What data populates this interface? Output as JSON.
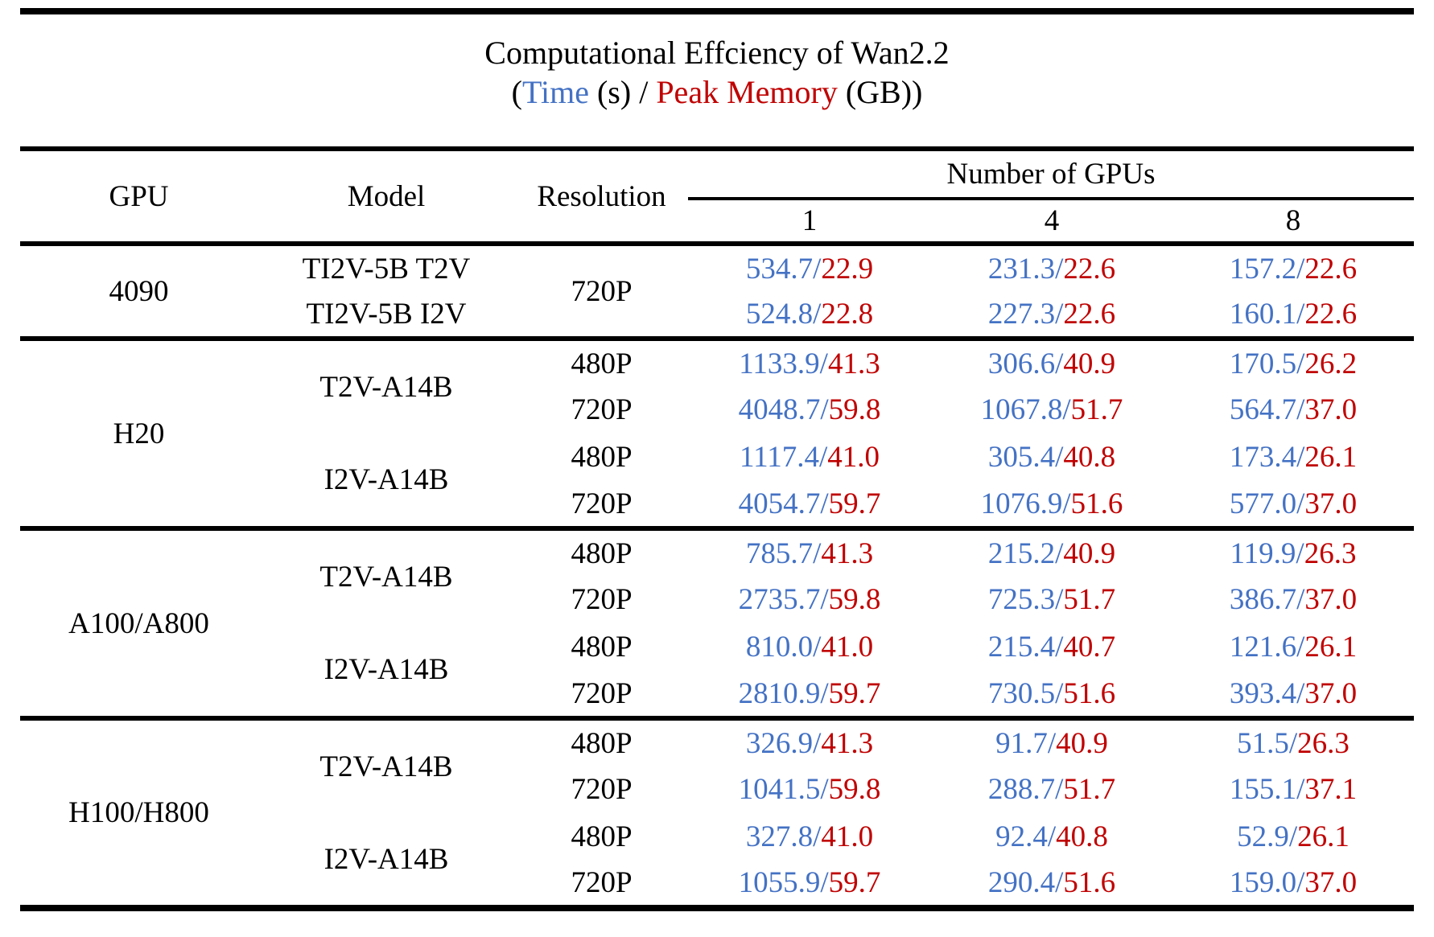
{
  "title": {
    "line1": "Computational Effciency of Wan2.2",
    "sub_prefix": "(",
    "sub_time": "Time",
    "sub_mid": " (s) / ",
    "sub_memory": "Peak Memory",
    "sub_suffix": " (GB))"
  },
  "colors": {
    "time": "#4472C4",
    "memory": "#C00000",
    "rule": "#000000"
  },
  "misc": {
    "slash": "/"
  },
  "header": {
    "gpu": "GPU",
    "model": "Model",
    "resolution": "Resolution",
    "group": "Number of GPUs",
    "counts": [
      "1",
      "4",
      "8"
    ]
  },
  "sections": [
    {
      "gpu": "4090",
      "rows": [
        {
          "model": "TI2V-5B T2V",
          "res": "720P",
          "v": [
            [
              "534.7",
              "22.9"
            ],
            [
              "231.3",
              "22.6"
            ],
            [
              "157.2",
              "22.6"
            ]
          ]
        },
        {
          "model": "TI2V-5B I2V",
          "v": [
            [
              "524.8",
              "22.8"
            ],
            [
              "227.3",
              "22.6"
            ],
            [
              "160.1",
              "22.6"
            ]
          ]
        }
      ]
    },
    {
      "gpu": "H20",
      "rows": [
        {
          "model": "T2V-A14B",
          "res": "480P",
          "v": [
            [
              "1133.9",
              "41.3"
            ],
            [
              "306.6",
              "40.9"
            ],
            [
              "170.5",
              "26.2"
            ]
          ]
        },
        {
          "res": "720P",
          "v": [
            [
              "4048.7",
              "59.8"
            ],
            [
              "1067.8",
              "51.7"
            ],
            [
              "564.7",
              "37.0"
            ]
          ]
        },
        {
          "model": "I2V-A14B",
          "res": "480P",
          "v": [
            [
              "1117.4",
              "41.0"
            ],
            [
              "305.4",
              "40.8"
            ],
            [
              "173.4",
              "26.1"
            ]
          ]
        },
        {
          "res": "720P",
          "v": [
            [
              "4054.7",
              "59.7"
            ],
            [
              "1076.9",
              "51.6"
            ],
            [
              "577.0",
              "37.0"
            ]
          ]
        }
      ]
    },
    {
      "gpu": "A100/A800",
      "rows": [
        {
          "model": "T2V-A14B",
          "res": "480P",
          "v": [
            [
              "785.7",
              "41.3"
            ],
            [
              "215.2",
              "40.9"
            ],
            [
              "119.9",
              "26.3"
            ]
          ]
        },
        {
          "res": "720P",
          "v": [
            [
              "2735.7",
              "59.8"
            ],
            [
              "725.3",
              "51.7"
            ],
            [
              "386.7",
              "37.0"
            ]
          ]
        },
        {
          "model": "I2V-A14B",
          "res": "480P",
          "v": [
            [
              "810.0",
              "41.0"
            ],
            [
              "215.4",
              "40.7"
            ],
            [
              "121.6",
              "26.1"
            ]
          ]
        },
        {
          "res": "720P",
          "v": [
            [
              "2810.9",
              "59.7"
            ],
            [
              "730.5",
              "51.6"
            ],
            [
              "393.4",
              "37.0"
            ]
          ]
        }
      ]
    },
    {
      "gpu": "H100/H800",
      "rows": [
        {
          "model": "T2V-A14B",
          "res": "480P",
          "v": [
            [
              "326.9",
              "41.3"
            ],
            [
              "91.7",
              "40.9"
            ],
            [
              "51.5",
              "26.3"
            ]
          ]
        },
        {
          "res": "720P",
          "v": [
            [
              "1041.5",
              "59.8"
            ],
            [
              "288.7",
              "51.7"
            ],
            [
              "155.1",
              "37.1"
            ]
          ]
        },
        {
          "model": "I2V-A14B",
          "res": "480P",
          "v": [
            [
              "327.8",
              "41.0"
            ],
            [
              "92.4",
              "40.8"
            ],
            [
              "52.9",
              "26.1"
            ]
          ]
        },
        {
          "res": "720P",
          "v": [
            [
              "1055.9",
              "59.7"
            ],
            [
              "290.4",
              "51.6"
            ],
            [
              "159.0",
              "37.0"
            ]
          ]
        }
      ]
    }
  ],
  "chart_data": {
    "type": "table",
    "title": "Computational Effciency of Wan2.2 (Time (s) / Peak Memory (GB))",
    "columns": [
      "GPU",
      "Model",
      "Resolution",
      "1 GPU",
      "4 GPUs",
      "8 GPUs"
    ],
    "rows": [
      [
        "4090",
        "TI2V-5B T2V",
        "720P",
        "534.7/22.9",
        "231.3/22.6",
        "157.2/22.6"
      ],
      [
        "4090",
        "TI2V-5B I2V",
        "720P",
        "524.8/22.8",
        "227.3/22.6",
        "160.1/22.6"
      ],
      [
        "H20",
        "T2V-A14B",
        "480P",
        "1133.9/41.3",
        "306.6/40.9",
        "170.5/26.2"
      ],
      [
        "H20",
        "T2V-A14B",
        "720P",
        "4048.7/59.8",
        "1067.8/51.7",
        "564.7/37.0"
      ],
      [
        "H20",
        "I2V-A14B",
        "480P",
        "1117.4/41.0",
        "305.4/40.8",
        "173.4/26.1"
      ],
      [
        "H20",
        "I2V-A14B",
        "720P",
        "4054.7/59.7",
        "1076.9/51.6",
        "577.0/37.0"
      ],
      [
        "A100/A800",
        "T2V-A14B",
        "480P",
        "785.7/41.3",
        "215.2/40.9",
        "119.9/26.3"
      ],
      [
        "A100/A800",
        "T2V-A14B",
        "720P",
        "2735.7/59.8",
        "725.3/51.7",
        "386.7/37.0"
      ],
      [
        "A100/A800",
        "I2V-A14B",
        "480P",
        "810.0/41.0",
        "215.4/40.7",
        "121.6/26.1"
      ],
      [
        "A100/A800",
        "I2V-A14B",
        "720P",
        "2810.9/59.7",
        "730.5/51.6",
        "393.4/37.0"
      ],
      [
        "H100/H800",
        "T2V-A14B",
        "480P",
        "326.9/41.3",
        "91.7/40.9",
        "51.5/26.3"
      ],
      [
        "H100/H800",
        "T2V-A14B",
        "720P",
        "1041.5/59.8",
        "288.7/51.7",
        "155.1/37.1"
      ],
      [
        "H100/H800",
        "I2V-A14B",
        "480P",
        "327.8/41.0",
        "92.4/40.8",
        "52.9/26.1"
      ],
      [
        "H100/H800",
        "I2V-A14B",
        "720P",
        "1055.9/59.7",
        "290.4/51.6",
        "159.0/37.0"
      ]
    ]
  }
}
